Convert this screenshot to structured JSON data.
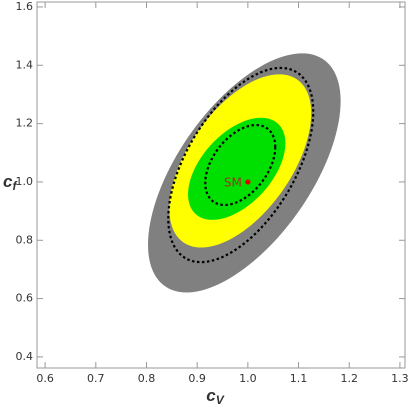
{
  "chart_data": {
    "type": "contour",
    "xlabel": "c",
    "xlabel_sub": "V",
    "ylabel": "c",
    "ylabel_sub": "f",
    "xlim": [
      0.584,
      1.31
    ],
    "ylim": [
      0.362,
      1.617
    ],
    "xticks": [
      0.6,
      0.7,
      0.8,
      0.9,
      {
        "value": 1,
        "label": "1.0"
      },
      1.1,
      1.2,
      1.3
    ],
    "yticks": [
      0.4,
      0.6,
      0.8,
      {
        "value": 1,
        "label": "1.0"
      },
      1.2,
      1.4,
      1.6
    ],
    "regions": [
      {
        "style": "fill",
        "color": "#808080",
        "cx": 0.993,
        "cy": 1.031,
        "sx": 0.19,
        "sy": 0.41,
        "rho": 0.6
      },
      {
        "style": "fill",
        "color": "#ffff00",
        "cx": 0.985,
        "cy": 1.072,
        "sx": 0.14,
        "sy": 0.297,
        "rho": 0.55
      },
      {
        "style": "fill",
        "color": "#00e000",
        "cx": 0.978,
        "cy": 1.045,
        "sx": 0.096,
        "sy": 0.175,
        "rho": 0.5
      },
      {
        "style": "dashed",
        "color": "#000000",
        "cx": 0.986,
        "cy": 1.058,
        "sx": 0.143,
        "sy": 0.333,
        "rho": 0.55
      },
      {
        "style": "dashed",
        "color": "#000000",
        "cx": 0.985,
        "cy": 1.058,
        "sx": 0.069,
        "sy": 0.137,
        "rho": 0.45
      }
    ],
    "points": [
      {
        "label": "SM",
        "x": 1,
        "y": 1,
        "color": "#e00000"
      }
    ]
  }
}
